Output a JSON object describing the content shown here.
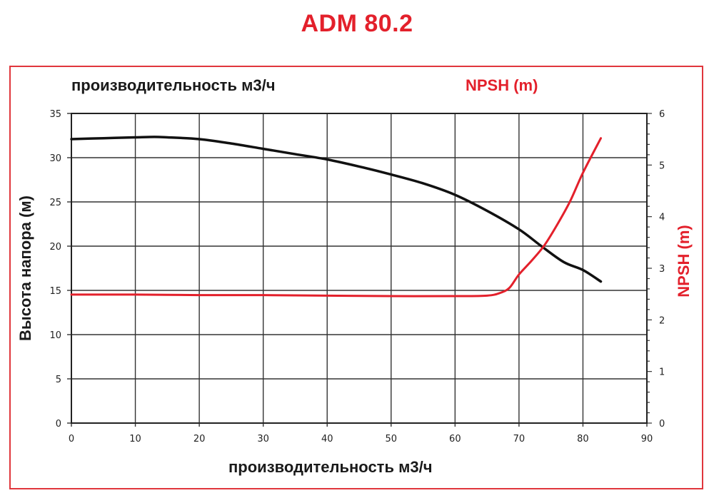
{
  "title": "ADM 80.2",
  "labels": {
    "top_left": "производительность м3/ч",
    "top_right": "NPSH (m)",
    "y_left": "Высота напора (м)",
    "y_right": "NPSH (m)",
    "x_bottom": "производительность м3/ч"
  },
  "colors": {
    "title": "#e3202b",
    "frame": "#e0363c",
    "head_curve": "#111111",
    "npsh_curve": "#e3202b",
    "grid": "#333333"
  },
  "chart_data": {
    "type": "line",
    "title": "ADM 80.2",
    "xlabel": "производительность м3/ч",
    "ylabel": "Высота напора (м)",
    "y2label": "NPSH (m)",
    "xlim": [
      0,
      90
    ],
    "ylim": [
      0,
      35
    ],
    "y2lim": [
      0,
      6
    ],
    "x_ticks": [
      0,
      10,
      20,
      30,
      40,
      50,
      60,
      70,
      80,
      90
    ],
    "y_ticks": [
      0,
      5,
      10,
      15,
      20,
      25,
      30,
      35
    ],
    "y2_ticks": [
      0,
      1,
      2,
      3,
      4,
      5,
      6
    ],
    "y2_minor_per_major": 5,
    "grid": true,
    "legend": null,
    "series": [
      {
        "name": "Высота напора (м)",
        "axis": "left",
        "color": "#111111",
        "x": [
          0,
          5,
          10,
          13,
          15,
          20,
          25,
          30,
          35,
          40,
          45,
          50,
          55,
          60,
          65,
          70,
          73.5,
          77,
          80,
          82.8
        ],
        "y": [
          32.1,
          32.2,
          32.3,
          32.35,
          32.3,
          32.1,
          31.6,
          31.0,
          30.4,
          29.8,
          29.0,
          28.1,
          27.1,
          25.8,
          24.0,
          21.9,
          20.0,
          18.2,
          17.3,
          16.0
        ]
      },
      {
        "name": "NPSH (m)",
        "axis": "right",
        "color": "#e3202b",
        "x": [
          0,
          10,
          20,
          30,
          40,
          50,
          60,
          65,
          67,
          68.5,
          70,
          72,
          74,
          76,
          78,
          80,
          82.8
        ],
        "y": [
          2.49,
          2.49,
          2.48,
          2.48,
          2.47,
          2.46,
          2.46,
          2.47,
          2.52,
          2.62,
          2.88,
          3.15,
          3.45,
          3.85,
          4.3,
          4.85,
          5.52
        ]
      }
    ]
  }
}
